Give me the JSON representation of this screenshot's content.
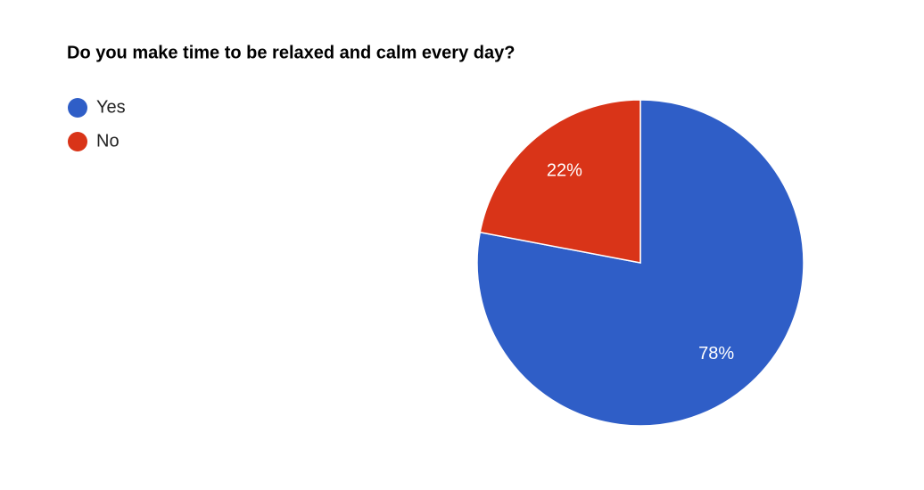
{
  "chart_data": {
    "type": "pie",
    "title": "Do you make time to be relaxed and calm every day?",
    "categories": [
      "Yes",
      "No"
    ],
    "values": [
      78,
      22
    ],
    "value_labels": [
      "78%",
      "22%"
    ],
    "colors": [
      "#2f5ec7",
      "#d93418"
    ],
    "legend": "top-left"
  }
}
